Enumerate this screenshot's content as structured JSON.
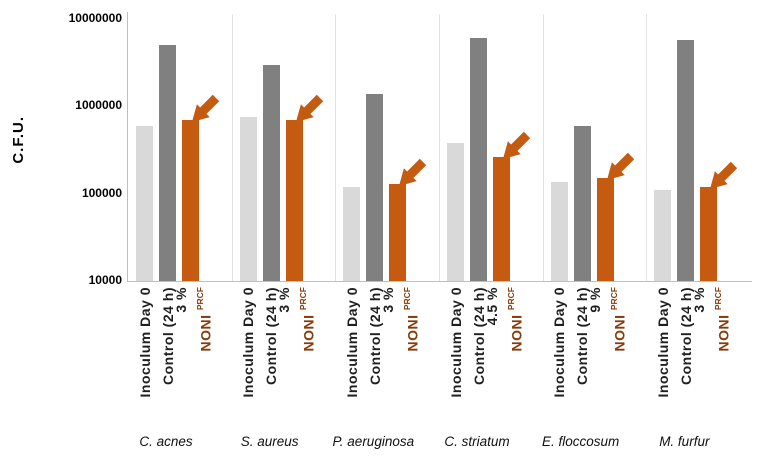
{
  "chart_data": {
    "type": "bar",
    "ylabel": "C.F.U.",
    "y_scale": "log",
    "ylim": [
      10000,
      10000000
    ],
    "y_ticks": [
      10000000,
      1000000,
      100000,
      10000
    ],
    "legend": "none",
    "grid": "vertical category separators only",
    "annotation_note": "orange arrows point at each NONI-treated bar",
    "series_labels": {
      "inoculum": "Inoculum Day 0",
      "control": "Control (24 h)",
      "noni": "NONI ",
      "noni_sup": "PRCF"
    },
    "groups": [
      {
        "species": "C. acnes",
        "percent": "3 %",
        "inoculum": 600000,
        "control": 5000000,
        "noni": 700000
      },
      {
        "species": "S. aureus",
        "percent": "3 %",
        "inoculum": 750000,
        "control": 3000000,
        "noni": 700000
      },
      {
        "species": "P. aeruginosa",
        "percent": "3 %",
        "inoculum": 120000,
        "control": 1400000,
        "noni": 130000
      },
      {
        "species": "C. striatum",
        "percent": "4.5 %",
        "inoculum": 380000,
        "control": 6000000,
        "noni": 260000
      },
      {
        "species": "E. floccosum",
        "percent": "9 %",
        "inoculum": 135000,
        "control": 600000,
        "noni": 150000
      },
      {
        "species": "M. furfur",
        "percent": "3 %",
        "inoculum": 110000,
        "control": 5800000,
        "noni": 120000
      }
    ],
    "colors": {
      "inoculum_bar": "#D9D9D9",
      "control_bar": "#808080",
      "noni_bar": "#C55A11",
      "arrow": "#C55A11",
      "noni_text": "#843C0C",
      "axis_line": "#BFBFBF",
      "separator": "#E3E3E3",
      "tick_text": "#000000",
      "label_text": "#1F1F1F"
    }
  }
}
